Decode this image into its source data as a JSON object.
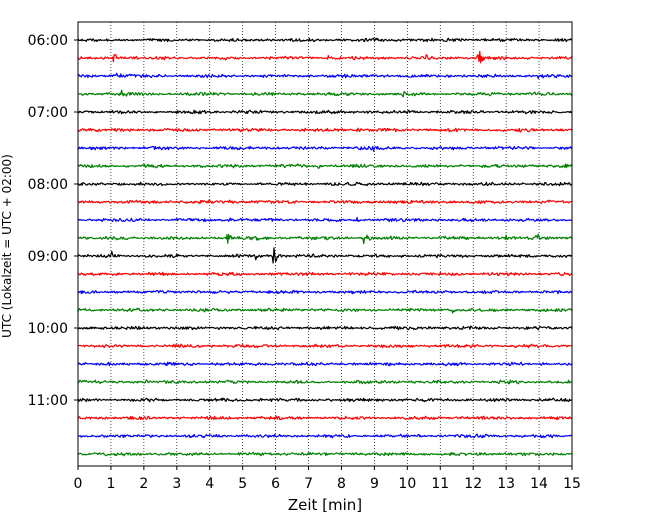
{
  "chart_data": {
    "type": "line",
    "title": "",
    "xlabel": "Zeit  [min]",
    "ylabel": "UTC (Lokalzeit = UTC + 02:00)",
    "xlim": [
      0,
      15
    ],
    "x_ticks": [
      "0",
      "1",
      "2",
      "3",
      "4",
      "5",
      "6",
      "7",
      "8",
      "9",
      "10",
      "11",
      "12",
      "13",
      "14",
      "15"
    ],
    "y_tick_labels": [
      "06:00",
      "07:00",
      "08:00",
      "09:00",
      "10:00",
      "11:00"
    ],
    "grid": "vertical dotted",
    "trace_colors": [
      "#000000",
      "#ff0000",
      "#0000ff",
      "#008000"
    ],
    "traces": [
      {
        "start": "06:00",
        "events": [
          {
            "t": 9.0,
            "a": 0.35
          }
        ]
      },
      {
        "start": "06:15",
        "events": [
          {
            "t": 1.1,
            "a": 0.8
          },
          {
            "t": 7.6,
            "a": 0.45
          },
          {
            "t": 10.6,
            "a": 0.5
          },
          {
            "t": 12.15,
            "a": 2.0
          }
        ]
      },
      {
        "start": "06:30",
        "events": [
          {
            "t": 1.1,
            "a": 1.7
          },
          {
            "t": 14.0,
            "a": 0.35
          }
        ]
      },
      {
        "start": "06:45",
        "events": [
          {
            "t": 1.35,
            "a": 0.5
          },
          {
            "t": 2.9,
            "a": 0.4
          },
          {
            "t": 9.85,
            "a": 0.5
          }
        ]
      },
      {
        "start": "07:00",
        "events": []
      },
      {
        "start": "07:15",
        "events": [
          {
            "t": 8.5,
            "a": 0.35
          }
        ]
      },
      {
        "start": "07:30",
        "events": [
          {
            "t": 9.0,
            "a": 0.3
          }
        ]
      },
      {
        "start": "07:45",
        "events": [
          {
            "t": 7.3,
            "a": 0.35
          }
        ]
      },
      {
        "start": "08:00",
        "events": []
      },
      {
        "start": "08:15",
        "events": [
          {
            "t": 4.6,
            "a": 0.35
          }
        ]
      },
      {
        "start": "08:30",
        "events": [
          {
            "t": 4.6,
            "a": 0.35
          },
          {
            "t": 8.5,
            "a": 0.3
          }
        ]
      },
      {
        "start": "08:45",
        "events": [
          {
            "t": 4.55,
            "a": 1.4
          },
          {
            "t": 5.4,
            "a": 0.45
          },
          {
            "t": 8.7,
            "a": 1.3
          },
          {
            "t": 9.5,
            "a": 0.5
          },
          {
            "t": 13.0,
            "a": 0.5
          },
          {
            "t": 13.9,
            "a": 1.0
          }
        ]
      },
      {
        "start": "09:00",
        "events": [
          {
            "t": 0.7,
            "a": 0.5
          },
          {
            "t": 1.05,
            "a": 0.7
          },
          {
            "t": 5.4,
            "a": 0.6
          },
          {
            "t": 5.95,
            "a": 1.5
          }
        ]
      },
      {
        "start": "09:15",
        "events": []
      },
      {
        "start": "09:30",
        "events": []
      },
      {
        "start": "09:45",
        "events": [
          {
            "t": 11.4,
            "a": 0.35
          }
        ]
      },
      {
        "start": "10:00",
        "events": [
          {
            "t": 3.6,
            "a": 0.3
          }
        ]
      },
      {
        "start": "10:15",
        "events": []
      },
      {
        "start": "10:30",
        "events": [
          {
            "t": 9.2,
            "a": 0.3
          }
        ]
      },
      {
        "start": "10:45",
        "events": [
          {
            "t": 2.1,
            "a": 0.45
          }
        ]
      },
      {
        "start": "11:00",
        "events": [
          {
            "t": 5.5,
            "a": 0.3
          }
        ]
      },
      {
        "start": "11:15",
        "events": []
      },
      {
        "start": "11:30",
        "events": [
          {
            "t": 14.3,
            "a": 0.3
          }
        ]
      },
      {
        "start": "11:45",
        "events": []
      }
    ]
  }
}
